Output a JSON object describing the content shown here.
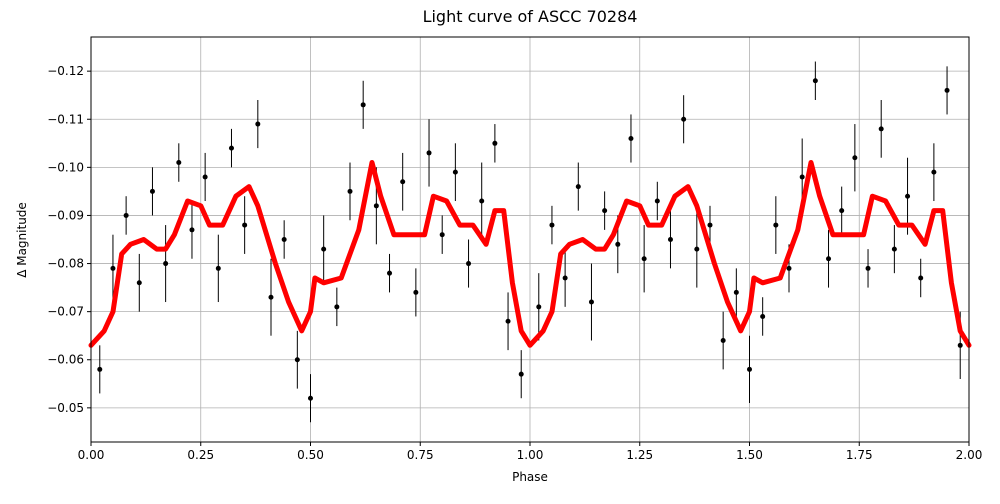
{
  "chart_data": {
    "type": "scatter",
    "title": "Light curve of ASCC 70284",
    "xlabel": "Phase",
    "ylabel": "Δ Magnitude",
    "xlim": [
      0,
      2
    ],
    "ylim": [
      -0.1271,
      -0.0429
    ],
    "y_inverted": true,
    "grid": true,
    "xticks": [
      {
        "value": 0,
        "label": "0.00"
      },
      {
        "value": 0.25,
        "label": "0.25"
      },
      {
        "value": 0.5,
        "label": "0.50"
      },
      {
        "value": 0.75,
        "label": "0.75"
      },
      {
        "value": 1,
        "label": "1.00"
      },
      {
        "value": 1.25,
        "label": "1.25"
      },
      {
        "value": 1.5,
        "label": "1.50"
      },
      {
        "value": 1.75,
        "label": "1.75"
      },
      {
        "value": 2,
        "label": "2.00"
      }
    ],
    "yticks": [
      {
        "value": -0.12,
        "label": "−0.12"
      },
      {
        "value": -0.11,
        "label": "−0.11"
      },
      {
        "value": -0.1,
        "label": "−0.10"
      },
      {
        "value": -0.09,
        "label": "−0.09"
      },
      {
        "value": -0.08,
        "label": "−0.08"
      },
      {
        "value": -0.07,
        "label": "−0.07"
      },
      {
        "value": -0.06,
        "label": "−0.06"
      },
      {
        "value": -0.05,
        "label": "−0.05"
      }
    ],
    "points": {
      "color": "#000000",
      "x": [
        0.02,
        0.05,
        0.08,
        0.11,
        0.14,
        0.17,
        0.2,
        0.23,
        0.26,
        0.29,
        0.32,
        0.35,
        0.38,
        0.41,
        0.44,
        0.47,
        0.5,
        0.53,
        0.56,
        0.59,
        0.62,
        0.65,
        0.68,
        0.71,
        0.74,
        0.77,
        0.8,
        0.83,
        0.86,
        0.89,
        0.92,
        0.95,
        0.98,
        1.02,
        1.05,
        1.08,
        1.11,
        1.14,
        1.17,
        1.2,
        1.23,
        1.26,
        1.29,
        1.32,
        1.35,
        1.38,
        1.41,
        1.44,
        1.47,
        1.5,
        1.53,
        1.56,
        1.59,
        1.62,
        1.65,
        1.68,
        1.71,
        1.74,
        1.77,
        1.8,
        1.83,
        1.86,
        1.89,
        1.92,
        1.95,
        1.98
      ],
      "values": [
        -0.058,
        -0.079,
        -0.09,
        -0.076,
        -0.095,
        -0.08,
        -0.101,
        -0.087,
        -0.098,
        -0.079,
        -0.104,
        -0.088,
        -0.109,
        -0.073,
        -0.085,
        -0.06,
        -0.052,
        -0.083,
        -0.071,
        -0.095,
        -0.113,
        -0.092,
        -0.078,
        -0.097,
        -0.074,
        -0.103,
        -0.086,
        -0.099,
        -0.08,
        -0.093,
        -0.105,
        -0.068,
        -0.057,
        -0.071,
        -0.088,
        -0.077,
        -0.096,
        -0.072,
        -0.091,
        -0.084,
        -0.106,
        -0.081,
        -0.093,
        -0.085,
        -0.11,
        -0.083,
        -0.088,
        -0.064,
        -0.074,
        -0.058,
        -0.069,
        -0.088,
        -0.079,
        -0.098,
        -0.118,
        -0.081,
        -0.091,
        -0.102,
        -0.079,
        -0.108,
        -0.083,
        -0.094,
        -0.077,
        -0.099,
        -0.116,
        -0.063
      ],
      "errors": [
        0.005,
        0.007,
        0.004,
        0.006,
        0.005,
        0.008,
        0.004,
        0.006,
        0.005,
        0.007,
        0.004,
        0.006,
        0.005,
        0.008,
        0.004,
        0.006,
        0.005,
        0.007,
        0.004,
        0.006,
        0.005,
        0.008,
        0.004,
        0.006,
        0.005,
        0.007,
        0.004,
        0.006,
        0.005,
        0.008,
        0.004,
        0.006,
        0.005,
        0.007,
        0.004,
        0.006,
        0.005,
        0.008,
        0.004,
        0.006,
        0.005,
        0.007,
        0.004,
        0.006,
        0.005,
        0.008,
        0.004,
        0.006,
        0.005,
        0.007,
        0.004,
        0.006,
        0.005,
        0.008,
        0.004,
        0.006,
        0.005,
        0.007,
        0.004,
        0.006,
        0.005,
        0.008,
        0.004,
        0.006,
        0.005,
        0.007
      ]
    },
    "curve": {
      "color": "#ff0000",
      "x": [
        0,
        0.03,
        0.05,
        0.07,
        0.09,
        0.12,
        0.15,
        0.17,
        0.19,
        0.22,
        0.25,
        0.27,
        0.3,
        0.33,
        0.36,
        0.38,
        0.42,
        0.45,
        0.48,
        0.5,
        0.51,
        0.53,
        0.57,
        0.61,
        0.64,
        0.66,
        0.69,
        0.73,
        0.76,
        0.78,
        0.81,
        0.84,
        0.87,
        0.9,
        0.92,
        0.94,
        0.96,
        0.98,
        1,
        1.03,
        1.05,
        1.07,
        1.09,
        1.12,
        1.15,
        1.17,
        1.19,
        1.22,
        1.25,
        1.27,
        1.3,
        1.33,
        1.36,
        1.38,
        1.42,
        1.45,
        1.48,
        1.5,
        1.51,
        1.53,
        1.57,
        1.61,
        1.64,
        1.66,
        1.69,
        1.73,
        1.76,
        1.78,
        1.81,
        1.84,
        1.87,
        1.9,
        1.92,
        1.94,
        1.96,
        1.98,
        2
      ],
      "values": [
        -0.063,
        -0.066,
        -0.07,
        -0.082,
        -0.084,
        -0.085,
        -0.083,
        -0.083,
        -0.086,
        -0.093,
        -0.092,
        -0.088,
        -0.088,
        -0.094,
        -0.096,
        -0.092,
        -0.08,
        -0.072,
        -0.066,
        -0.07,
        -0.077,
        -0.076,
        -0.077,
        -0.087,
        -0.101,
        -0.094,
        -0.086,
        -0.086,
        -0.086,
        -0.094,
        -0.093,
        -0.088,
        -0.088,
        -0.084,
        -0.091,
        -0.091,
        -0.076,
        -0.066,
        -0.063,
        -0.066,
        -0.07,
        -0.082,
        -0.084,
        -0.085,
        -0.083,
        -0.083,
        -0.086,
        -0.093,
        -0.092,
        -0.088,
        -0.088,
        -0.094,
        -0.096,
        -0.092,
        -0.08,
        -0.072,
        -0.066,
        -0.07,
        -0.077,
        -0.076,
        -0.077,
        -0.087,
        -0.101,
        -0.094,
        -0.086,
        -0.086,
        -0.086,
        -0.094,
        -0.093,
        -0.088,
        -0.088,
        -0.084,
        -0.091,
        -0.091,
        -0.076,
        -0.066,
        -0.063
      ]
    }
  }
}
